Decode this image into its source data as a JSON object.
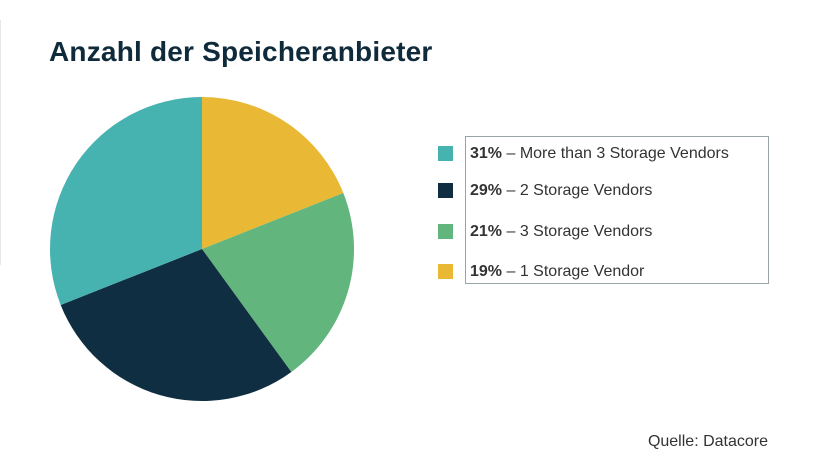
{
  "chart_data": {
    "type": "pie",
    "title": "Anzahl der Speicheranbieter",
    "slices": [
      {
        "label": "1 Storage Vendor",
        "percent_label": "19%",
        "value": 19,
        "color": "#e9b936"
      },
      {
        "label": "3 Storage Vendors",
        "percent_label": "21%",
        "value": 21,
        "color": "#63b57e"
      },
      {
        "label": "2 Storage Vendors",
        "percent_label": "29%",
        "value": 29,
        "color": "#102e41"
      },
      {
        "label": "More than 3 Storage Vendors",
        "percent_label": "31%",
        "value": 31,
        "color": "#47b3b0"
      }
    ],
    "legend_order": [
      3,
      2,
      1,
      0
    ],
    "legend_separator": " – ",
    "legend_placement": "right",
    "source": "Quelle: Datacore"
  }
}
